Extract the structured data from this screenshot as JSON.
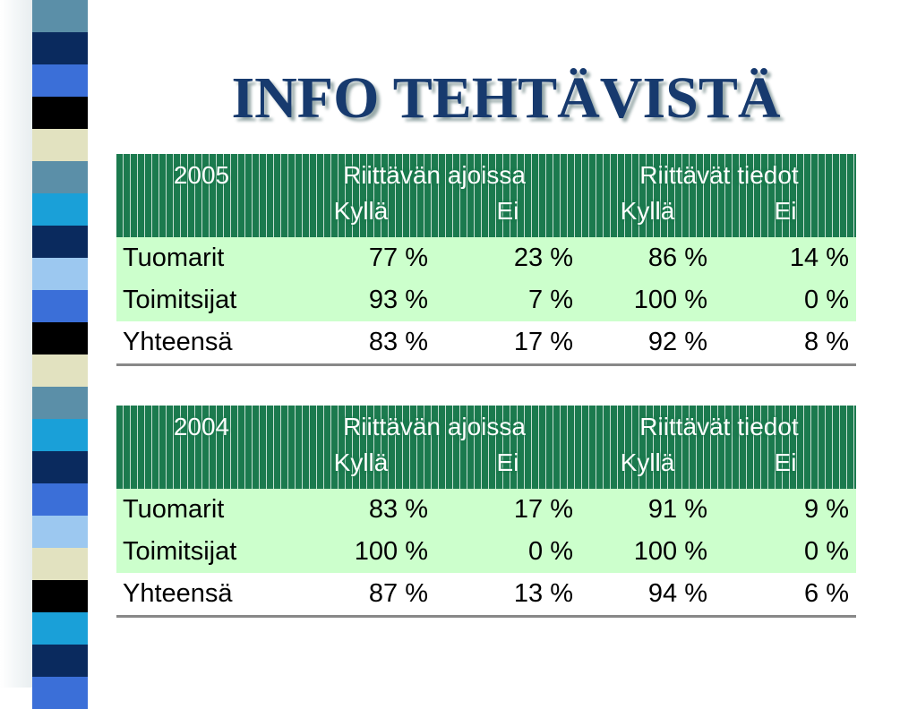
{
  "title": "INFO TEHTÄVISTÄ",
  "tables": [
    {
      "header": {
        "year": "2005",
        "groups": [
          "Riittävän ajoissa",
          "Riittävät tiedot"
        ],
        "sub": [
          "Kyllä",
          "Ei",
          "Kyllä",
          "Ei"
        ]
      },
      "rows": [
        [
          "Tuomarit",
          "77 %",
          "23 %",
          "86 %",
          "14 %"
        ],
        [
          "Toimitsijat",
          "93 %",
          "7 %",
          "100 %",
          "0 %"
        ],
        [
          "Yhteensä",
          "83 %",
          "17 %",
          "92 %",
          "8 %"
        ]
      ]
    },
    {
      "header": {
        "year": "2004",
        "groups": [
          "Riittävän ajoissa",
          "Riittävät tiedot"
        ],
        "sub": [
          "Kyllä",
          "Ei",
          "Kyllä",
          "Ei"
        ]
      },
      "rows": [
        [
          "Tuomarit",
          "83 %",
          "17 %",
          "91 %",
          "9 %"
        ],
        [
          "Toimitsijat",
          "100 %",
          "0 %",
          "100 %",
          "0 %"
        ],
        [
          "Yhteensä",
          "87 %",
          "13 %",
          "94 %",
          "6 %"
        ]
      ]
    }
  ]
}
